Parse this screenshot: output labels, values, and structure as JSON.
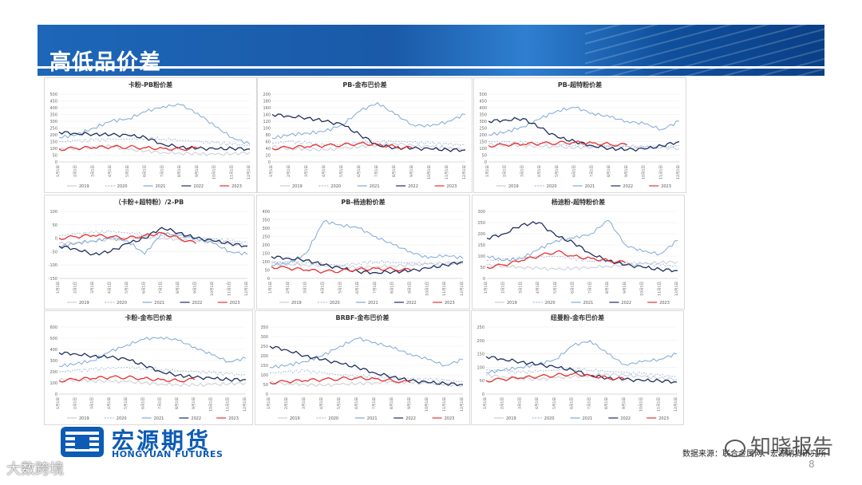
{
  "header": {
    "title": "高低品价差"
  },
  "footer": {
    "logo_cn": "宏源期货",
    "logo_en": "HONGYUAN FUTURES",
    "source": "数据来源：联合金属网、宏源期货研究所",
    "page": "8",
    "watermark_right": "知晓报告",
    "watermark_left": "大数跨境"
  },
  "colors": {
    "2019": "#c8cdd8",
    "2020": "#a9bfd8",
    "2021": "#7fa9d6",
    "2022": "#1f2f5f",
    "2023": "#e8312f"
  },
  "chart_data": [
    {
      "type": "line",
      "title": "卡粉-PB粉价差",
      "ylim": [
        0,
        500
      ],
      "yticks": [
        0,
        50,
        100,
        150,
        200,
        250,
        300,
        350,
        400,
        450,
        500
      ],
      "categories": [
        "1月1日",
        "2月1日",
        "3月1日",
        "4月1日",
        "5月1日",
        "6月1日",
        "7月1日",
        "8月1日",
        "9月1日",
        "10月1日",
        "11月1日",
        "12月1日"
      ],
      "series": [
        {
          "name": "2019",
          "values": [
            95,
            100,
            110,
            115,
            90,
            80,
            70,
            65,
            60,
            55,
            60,
            70
          ]
        },
        {
          "name": "2020",
          "values": [
            150,
            155,
            160,
            165,
            170,
            175,
            170,
            160,
            150,
            140,
            130,
            120
          ]
        },
        {
          "name": "2021",
          "values": [
            180,
            200,
            250,
            300,
            320,
            370,
            410,
            420,
            360,
            260,
            180,
            130
          ]
        },
        {
          "name": "2022",
          "values": [
            220,
            210,
            205,
            200,
            195,
            180,
            130,
            110,
            100,
            95,
            100,
            95
          ]
        },
        {
          "name": "2023",
          "values": [
            95,
            100,
            105,
            110,
            110,
            105,
            100,
            95,
            100,
            null,
            null,
            null
          ]
        }
      ]
    },
    {
      "type": "line",
      "title": "PB-金布巴价差",
      "ylim": [
        0,
        200
      ],
      "yticks": [
        0,
        20,
        40,
        60,
        80,
        100,
        120,
        140,
        160,
        180,
        200
      ],
      "categories": [
        "1月1日",
        "2月1日",
        "3月1日",
        "4月1日",
        "5月1日",
        "6月1日",
        "7月1日",
        "8月1日",
        "9月1日",
        "10月1日",
        "11月1日",
        "12月1日"
      ],
      "series": [
        {
          "name": "2019",
          "values": [
            45,
            40,
            38,
            35,
            40,
            45,
            50,
            55,
            48,
            45,
            40,
            38
          ]
        },
        {
          "name": "2020",
          "values": [
            55,
            60,
            55,
            50,
            52,
            58,
            60,
            62,
            58,
            55,
            52,
            50
          ]
        },
        {
          "name": "2021",
          "values": [
            70,
            80,
            85,
            90,
            110,
            150,
            175,
            140,
            110,
            105,
            120,
            140
          ]
        },
        {
          "name": "2022",
          "values": [
            140,
            135,
            130,
            120,
            110,
            80,
            50,
            42,
            40,
            38,
            36,
            35
          ]
        },
        {
          "name": "2023",
          "values": [
            40,
            42,
            45,
            48,
            50,
            55,
            52,
            45,
            40,
            null,
            null,
            null
          ]
        }
      ]
    },
    {
      "type": "line",
      "title": "PB-超特粉价差",
      "ylim": [
        0,
        500
      ],
      "yticks": [
        0,
        50,
        100,
        150,
        200,
        250,
        300,
        350,
        400,
        450,
        500
      ],
      "categories": [
        "1月1日",
        "2月1日",
        "3月1日",
        "4月1日",
        "5月1日",
        "6月1日",
        "7月1日",
        "8月1日",
        "9月1日",
        "10月1日",
        "11月1日",
        "12月1日"
      ],
      "series": [
        {
          "name": "2019",
          "values": [
            130,
            125,
            120,
            115,
            110,
            105,
            110,
            120,
            115,
            110,
            105,
            100
          ]
        },
        {
          "name": "2020",
          "values": [
            150,
            145,
            140,
            135,
            130,
            125,
            120,
            115,
            110,
            105,
            110,
            120
          ]
        },
        {
          "name": "2021",
          "values": [
            200,
            220,
            260,
            320,
            380,
            400,
            360,
            330,
            300,
            280,
            240,
            300
          ]
        },
        {
          "name": "2022",
          "values": [
            300,
            310,
            320,
            250,
            180,
            150,
            120,
            100,
            90,
            95,
            120,
            150
          ]
        },
        {
          "name": "2023",
          "values": [
            120,
            125,
            130,
            135,
            140,
            145,
            140,
            130,
            125,
            null,
            null,
            null
          ]
        }
      ]
    },
    {
      "type": "line",
      "title": "（卡粉+超特粉）/2-PB",
      "ylim": [
        -150,
        100
      ],
      "yticks": [
        -150,
        -100,
        -50,
        0,
        50,
        100
      ],
      "categories": [
        "1月1日",
        "2月1日",
        "3月1日",
        "4月1日",
        "5月1日",
        "6月1日",
        "7月1日",
        "8月1日",
        "9月1日",
        "10月1日",
        "11月1日",
        "12月1日"
      ],
      "series": [
        {
          "name": "2019",
          "values": [
            -20,
            -15,
            -10,
            -5,
            0,
            5,
            0,
            -5,
            -10,
            -15,
            -20,
            -25
          ]
        },
        {
          "name": "2020",
          "values": [
            10,
            15,
            20,
            25,
            20,
            15,
            10,
            5,
            0,
            -5,
            -10,
            -15
          ]
        },
        {
          "name": "2021",
          "values": [
            -30,
            -20,
            -10,
            0,
            -10,
            -60,
            20,
            10,
            0,
            -20,
            -50,
            -60
          ]
        },
        {
          "name": "2022",
          "values": [
            -30,
            -40,
            -60,
            -50,
            -20,
            0,
            40,
            20,
            0,
            -10,
            -20,
            -30
          ]
        },
        {
          "name": "2023",
          "values": [
            0,
            5,
            10,
            5,
            0,
            10,
            20,
            0,
            -20,
            null,
            null,
            null
          ]
        }
      ]
    },
    {
      "type": "line",
      "title": "PB-杨迪粉价差",
      "ylim": [
        0,
        400
      ],
      "yticks": [
        0,
        50,
        100,
        150,
        200,
        250,
        300,
        350,
        400
      ],
      "categories": [
        "1月1日",
        "2月1日",
        "3月1日",
        "4月1日",
        "5月1日",
        "6月1日",
        "7月1日",
        "8月1日",
        "9月1日",
        "10月1日",
        "11月1日",
        "12月1日"
      ],
      "series": [
        {
          "name": "2019",
          "values": [
            90,
            85,
            80,
            75,
            70,
            65,
            70,
            75,
            80,
            85,
            90,
            95
          ]
        },
        {
          "name": "2020",
          "values": [
            100,
            95,
            90,
            85,
            80,
            90,
            100,
            95,
            90,
            85,
            80,
            90
          ]
        },
        {
          "name": "2021",
          "values": [
            80,
            90,
            150,
            340,
            320,
            300,
            250,
            200,
            160,
            120,
            140,
            120
          ]
        },
        {
          "name": "2022",
          "values": [
            130,
            120,
            110,
            80,
            60,
            40,
            35,
            40,
            45,
            60,
            80,
            100
          ]
        },
        {
          "name": "2023",
          "values": [
            70,
            60,
            50,
            40,
            45,
            55,
            60,
            55,
            50,
            null,
            null,
            null
          ]
        }
      ]
    },
    {
      "type": "line",
      "title": "杨迪粉-超特粉价差",
      "ylim": [
        0,
        300
      ],
      "yticks": [
        0,
        50,
        100,
        150,
        200,
        250,
        300
      ],
      "categories": [
        "1月1日",
        "2月1日",
        "3月1日",
        "4月1日",
        "5月1日",
        "6月1日",
        "7月1日",
        "8月1日",
        "9月1日",
        "10月1日",
        "11月1日",
        "12月1日"
      ],
      "series": [
        {
          "name": "2019",
          "values": [
            60,
            55,
            50,
            45,
            40,
            45,
            50,
            55,
            60,
            65,
            70,
            75
          ]
        },
        {
          "name": "2020",
          "values": [
            80,
            85,
            90,
            95,
            100,
            90,
            80,
            75,
            70,
            65,
            60,
            55
          ]
        },
        {
          "name": "2021",
          "values": [
            100,
            80,
            90,
            130,
            170,
            180,
            200,
            260,
            150,
            120,
            110,
            170
          ]
        },
        {
          "name": "2022",
          "values": [
            180,
            200,
            240,
            250,
            190,
            160,
            110,
            80,
            60,
            50,
            40,
            35
          ]
        },
        {
          "name": "2023",
          "values": [
            50,
            60,
            80,
            100,
            120,
            100,
            90,
            80,
            70,
            null,
            null,
            null
          ]
        }
      ]
    },
    {
      "type": "line",
      "title": "卡粉-金布巴价差",
      "ylim": [
        0,
        600
      ],
      "yticks": [
        0,
        100,
        200,
        300,
        400,
        500,
        600
      ],
      "categories": [
        "1月1日",
        "2月1日",
        "3月1日",
        "4月1日",
        "5月1日",
        "6月1日",
        "7月1日",
        "8月1日",
        "9月1日",
        "10月1日",
        "11月1日",
        "12月1日"
      ],
      "series": [
        {
          "name": "2019",
          "values": [
            130,
            125,
            120,
            115,
            110,
            100,
            90,
            85,
            80,
            85,
            90,
            100
          ]
        },
        {
          "name": "2020",
          "values": [
            200,
            210,
            220,
            230,
            240,
            230,
            220,
            210,
            200,
            190,
            180,
            170
          ]
        },
        {
          "name": "2021",
          "values": [
            250,
            270,
            300,
            380,
            440,
            490,
            510,
            480,
            420,
            350,
            290,
            320
          ]
        },
        {
          "name": "2022",
          "values": [
            370,
            360,
            340,
            330,
            310,
            260,
            200,
            170,
            150,
            140,
            130,
            130
          ]
        },
        {
          "name": "2023",
          "values": [
            120,
            130,
            140,
            150,
            150,
            140,
            130,
            120,
            130,
            null,
            null,
            null
          ]
        }
      ]
    },
    {
      "type": "line",
      "title": "BRBF-金布巴价差",
      "ylim": [
        0,
        350
      ],
      "yticks": [
        0,
        50,
        100,
        150,
        200,
        250,
        300,
        350
      ],
      "categories": [
        "1月1日",
        "2月1日",
        "3月1日",
        "4月1日",
        "5月1日",
        "6月1日",
        "7月1日",
        "8月1日",
        "9月1日",
        "10月1日",
        "11月1日",
        "12月1日"
      ],
      "series": [
        {
          "name": "2019",
          "values": [
            60,
            55,
            50,
            45,
            50,
            55,
            60,
            65,
            60,
            55,
            50,
            45
          ]
        },
        {
          "name": "2020",
          "values": [
            110,
            115,
            120,
            110,
            100,
            95,
            90,
            85,
            80,
            75,
            70,
            65
          ]
        },
        {
          "name": "2021",
          "values": [
            140,
            150,
            170,
            200,
            250,
            290,
            270,
            240,
            210,
            180,
            150,
            180
          ]
        },
        {
          "name": "2022",
          "values": [
            250,
            230,
            200,
            180,
            160,
            140,
            110,
            90,
            70,
            60,
            55,
            50
          ]
        },
        {
          "name": "2023",
          "values": [
            60,
            65,
            70,
            75,
            80,
            85,
            80,
            70,
            60,
            null,
            null,
            null
          ]
        }
      ]
    },
    {
      "type": "line",
      "title": "纽曼粉-金布巴价差",
      "ylim": [
        0,
        250
      ],
      "yticks": [
        0,
        50,
        100,
        150,
        200,
        250
      ],
      "categories": [
        "1月1日",
        "2月1日",
        "3月1日",
        "4月1日",
        "5月1日",
        "6月1日",
        "7月1日",
        "8月1日",
        "9月1日",
        "10月1日",
        "11月1日",
        "12月1日"
      ],
      "series": [
        {
          "name": "2019",
          "values": [
            70,
            65,
            60,
            55,
            60,
            65,
            70,
            75,
            70,
            65,
            60,
            55
          ]
        },
        {
          "name": "2020",
          "values": [
            90,
            85,
            80,
            85,
            90,
            95,
            90,
            85,
            80,
            75,
            70,
            65
          ]
        },
        {
          "name": "2021",
          "values": [
            80,
            90,
            100,
            110,
            130,
            180,
            200,
            150,
            110,
            120,
            130,
            150
          ]
        },
        {
          "name": "2022",
          "values": [
            140,
            130,
            120,
            110,
            100,
            90,
            70,
            60,
            55,
            50,
            50,
            45
          ]
        },
        {
          "name": "2023",
          "values": [
            50,
            55,
            60,
            65,
            70,
            75,
            70,
            60,
            55,
            null,
            null,
            null
          ]
        }
      ]
    }
  ]
}
